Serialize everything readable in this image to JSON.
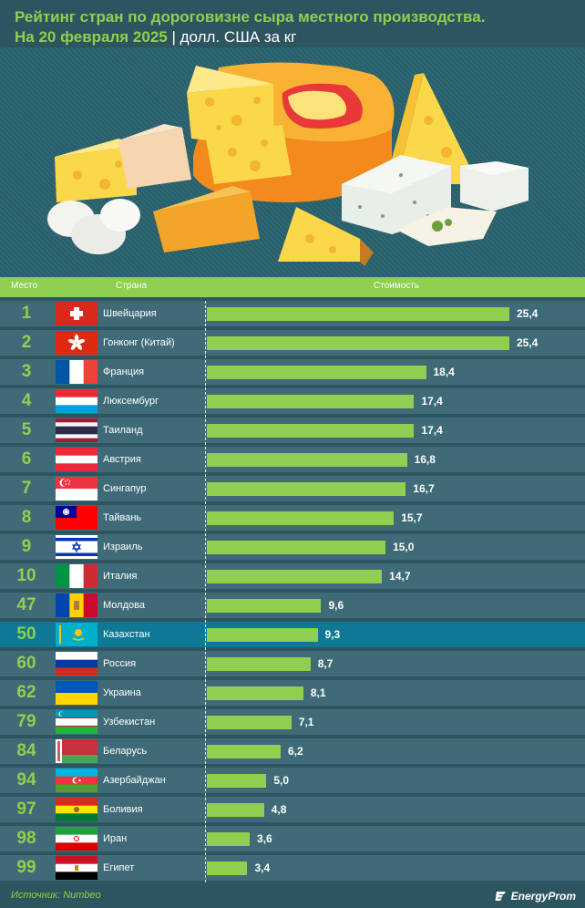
{
  "title": {
    "line1": "Рейтинг стран по дороговизне сыра местного производства.",
    "date": "На 20 февраля 2025",
    "separator": " | ",
    "unit": "долл. США за кг"
  },
  "table_header": {
    "rank": "Место",
    "country": "Страна",
    "cost": "Стоимость"
  },
  "colors": {
    "background": "#2c5560",
    "row": "#3f6b78",
    "row_highlight": "#0e7895",
    "accent_green": "#8ed04f",
    "text": "#ffffff"
  },
  "chart_data": {
    "type": "bar",
    "orientation": "horizontal",
    "title": "Рейтинг стран по дороговизне сыра местного производства.",
    "subtitle": "На 20 февраля 2025 | долл. США за кг",
    "xlabel": "Стоимость",
    "ylabel": "Страна",
    "xlim": [
      0,
      25.4
    ],
    "grid": false,
    "legend": "none",
    "highlighted": "Казахстан",
    "rows": [
      {
        "rank": "1",
        "country": "Швейцария",
        "value": 25.4,
        "label": "25,4",
        "flag": "ch"
      },
      {
        "rank": "2",
        "country": "Гонконг (Китай)",
        "value": 25.4,
        "label": "25,4",
        "flag": "hk"
      },
      {
        "rank": "3",
        "country": "Франция",
        "value": 18.4,
        "label": "18,4",
        "flag": "fr"
      },
      {
        "rank": "4",
        "country": "Люксембург",
        "value": 17.4,
        "label": "17,4",
        "flag": "lu"
      },
      {
        "rank": "5",
        "country": "Таиланд",
        "value": 17.4,
        "label": "17,4",
        "flag": "th"
      },
      {
        "rank": "6",
        "country": "Австрия",
        "value": 16.8,
        "label": "16,8",
        "flag": "at"
      },
      {
        "rank": "7",
        "country": "Сингапур",
        "value": 16.7,
        "label": "16,7",
        "flag": "sg"
      },
      {
        "rank": "8",
        "country": "Тайвань",
        "value": 15.7,
        "label": "15,7",
        "flag": "tw"
      },
      {
        "rank": "9",
        "country": "Израиль",
        "value": 15.0,
        "label": "15,0",
        "flag": "il"
      },
      {
        "rank": "10",
        "country": "Италия",
        "value": 14.7,
        "label": "14,7",
        "flag": "it"
      },
      {
        "rank": "47",
        "country": "Молдова",
        "value": 9.6,
        "label": "9,6",
        "flag": "md"
      },
      {
        "rank": "50",
        "country": "Казахстан",
        "value": 9.3,
        "label": "9,3",
        "flag": "kz",
        "highlight": true
      },
      {
        "rank": "60",
        "country": "Россия",
        "value": 8.7,
        "label": "8,7",
        "flag": "ru"
      },
      {
        "rank": "62",
        "country": "Украина",
        "value": 8.1,
        "label": "8,1",
        "flag": "ua"
      },
      {
        "rank": "79",
        "country": "Узбекистан",
        "value": 7.1,
        "label": "7,1",
        "flag": "uz"
      },
      {
        "rank": "84",
        "country": "Беларусь",
        "value": 6.2,
        "label": "6,2",
        "flag": "by"
      },
      {
        "rank": "94",
        "country": "Азербайджан",
        "value": 5.0,
        "label": "5,0",
        "flag": "az"
      },
      {
        "rank": "97",
        "country": "Боливия",
        "value": 4.8,
        "label": "4,8",
        "flag": "bo"
      },
      {
        "rank": "98",
        "country": "Иран",
        "value": 3.6,
        "label": "3,6",
        "flag": "ir"
      },
      {
        "rank": "99",
        "country": "Египет",
        "value": 3.4,
        "label": "3,4",
        "flag": "eg"
      }
    ]
  },
  "footer": {
    "source": "Источник: Numbeo",
    "logo": "EnergyProm",
    "logo_icon": "energyprom-logo-icon"
  },
  "illustration": {
    "name": "cheese-assortment-illustration"
  }
}
